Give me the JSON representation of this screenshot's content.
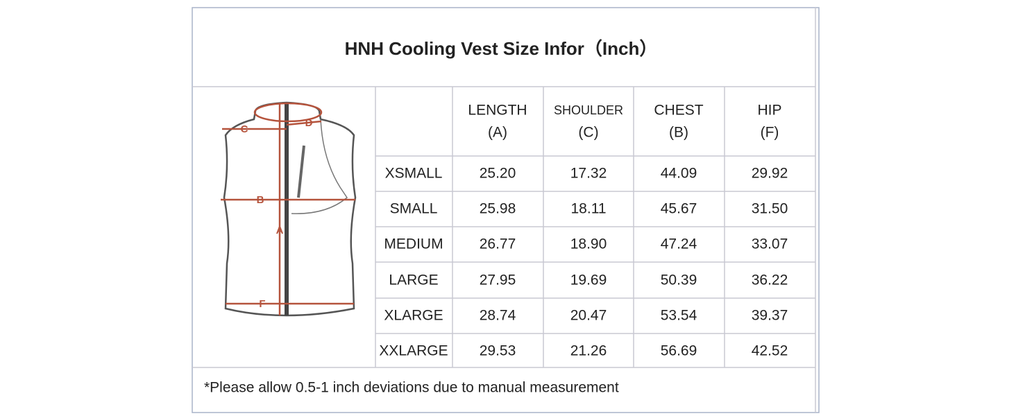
{
  "title": "HNH Cooling Vest Size Infor（Inch）",
  "diagram": {
    "labels": [
      "C",
      "D",
      "B",
      "A",
      "F"
    ]
  },
  "table": {
    "header": [
      [
        "LENGTH",
        "(A)"
      ],
      [
        "SHOULDER",
        "(C)"
      ],
      [
        "CHEST",
        "(B)"
      ],
      [
        "HIP",
        "(F)"
      ]
    ],
    "rows": [
      [
        "XSMALL",
        "25.20",
        "17.32",
        "44.09",
        "29.92"
      ],
      [
        "SMALL",
        "25.98",
        "18.11",
        "45.67",
        "31.50"
      ],
      [
        "MEDIUM",
        "26.77",
        "18.90",
        "47.24",
        "33.07"
      ],
      [
        "LARGE",
        "27.95",
        "19.69",
        "50.39",
        "36.22"
      ],
      [
        "XLARGE",
        "28.74",
        "20.47",
        "53.54",
        "39.37"
      ],
      [
        "XXLARGE",
        "29.53",
        "21.26",
        "56.69",
        "42.52"
      ]
    ]
  },
  "footnote": "*Please allow 0.5-1 inch deviations due to manual measurement"
}
